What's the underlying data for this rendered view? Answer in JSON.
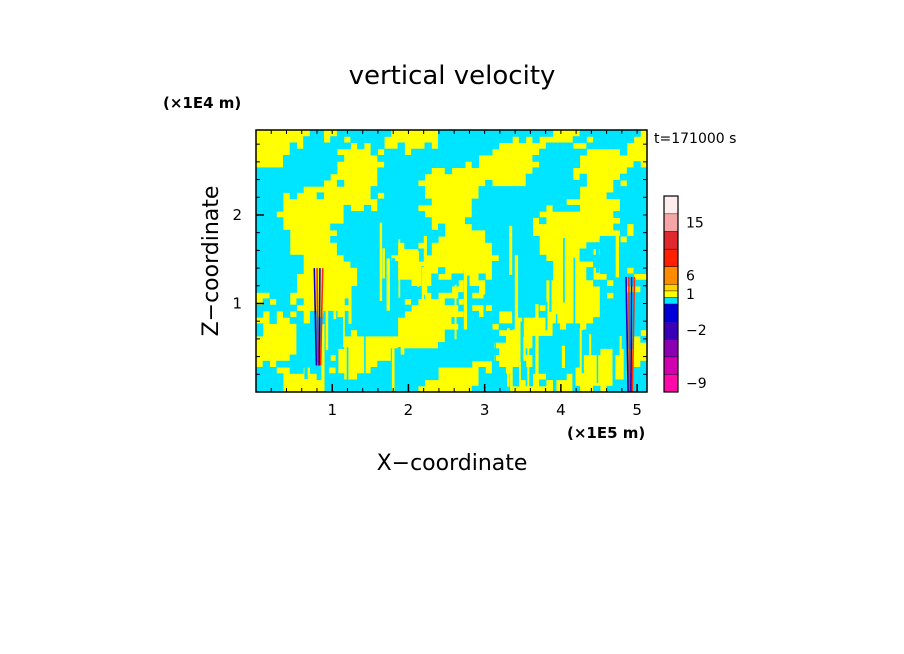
{
  "chart_data": {
    "type": "heatmap",
    "title": "vertical velocity",
    "xlabel": "X−coordinate",
    "ylabel": "Z−coordinate",
    "x_scale_label": "(×1E5 m)",
    "y_scale_label": "(×1E4 m)",
    "time_label": "t=171000 s",
    "xlim": [
      0,
      5.13
    ],
    "ylim": [
      0,
      2.96
    ],
    "x_ticks": [
      1,
      2,
      3,
      4,
      5
    ],
    "x_tick_labels": [
      "1",
      "2",
      "3",
      "4",
      "5"
    ],
    "y_ticks": [
      1,
      2
    ],
    "y_tick_labels": [
      "1",
      "2"
    ],
    "field_colors": {
      "positive": "#ffff00",
      "negative": "#00e5ff",
      "strong_negative": "#0000cc",
      "strong_positive": "#ff2a00"
    },
    "updraft_features": [
      {
        "x": 0.82,
        "z_min": 0.3,
        "z_max": 1.4,
        "sign": "mixed"
      },
      {
        "x": 4.91,
        "z_min": 0.0,
        "z_max": 1.3,
        "sign": "mixed"
      }
    ],
    "colorbar": {
      "levels": [
        {
          "color": "#ff0aa8",
          "label": "−9"
        },
        {
          "color": "#d000b0",
          "label": ""
        },
        {
          "color": "#8c00b4",
          "label": ""
        },
        {
          "color": "#3a00b8",
          "label": "−2"
        },
        {
          "color": "#0000d8",
          "label": ""
        },
        {
          "color": "#00e5ff",
          "label": ""
        },
        {
          "color": "#ffff00",
          "label": "1"
        },
        {
          "color": "#ffd200",
          "label": ""
        },
        {
          "color": "#ff8c00",
          "label": "6"
        },
        {
          "color": "#ff2000",
          "label": ""
        },
        {
          "color": "#e0282e",
          "label": ""
        },
        {
          "color": "#f5a5a5",
          "label": "15"
        },
        {
          "color": "#ffeded",
          "label": ""
        }
      ]
    }
  }
}
